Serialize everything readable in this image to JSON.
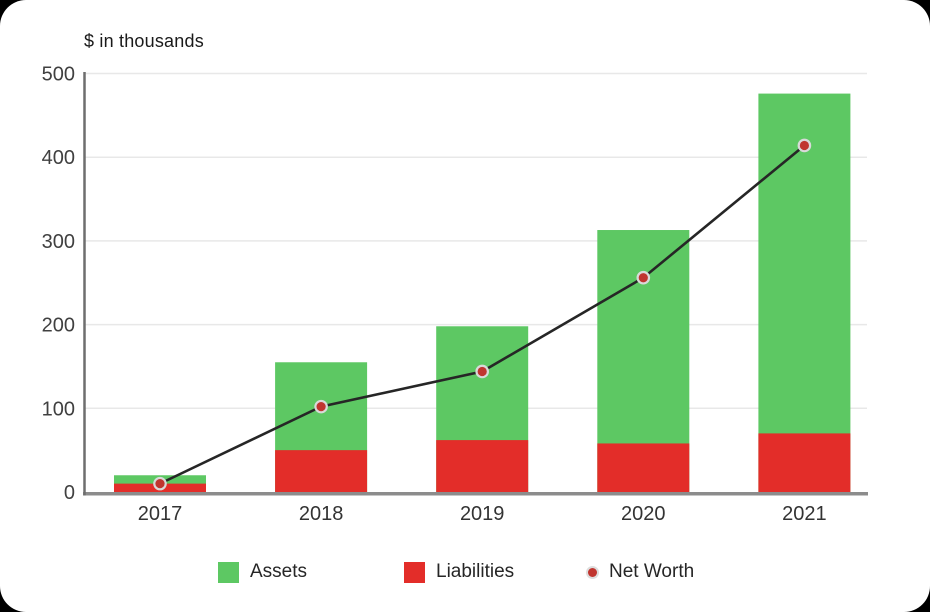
{
  "title": "$ in thousands",
  "chart_data": {
    "type": "bar",
    "subtype": "overlay-bars-with-line-markers",
    "title": "$ in thousands",
    "xlabel": "",
    "ylabel": "$ in thousands",
    "categories": [
      "2017",
      "2018",
      "2019",
      "2020",
      "2021"
    ],
    "series": [
      {
        "name": "Assets",
        "type": "bar",
        "color": "#5DC863",
        "values": [
          20,
          155,
          198,
          313,
          476
        ]
      },
      {
        "name": "Liabilities",
        "type": "bar",
        "color": "#E32D29",
        "values": [
          10,
          50,
          62,
          58,
          70
        ]
      },
      {
        "name": "Net Worth",
        "type": "line",
        "color": "#262626",
        "marker_fill": "#C0352F",
        "marker_ring": "#D9D9D9",
        "values": [
          10,
          102,
          144,
          256,
          414
        ]
      }
    ],
    "ylim": [
      0,
      500
    ],
    "yticks": [
      0,
      100,
      200,
      300,
      400,
      500
    ],
    "grid": true,
    "gridline_color": "#E8E8E8",
    "axis_color": "#8C8C8C",
    "tick_label_color": "#404040",
    "category_label_color": "#333333",
    "legend_position": "bottom"
  },
  "legend": {
    "items": [
      {
        "label": "Assets",
        "marker": "square",
        "color": "#5DC863"
      },
      {
        "label": "Liabilities",
        "marker": "square",
        "color": "#E32D29"
      },
      {
        "label": "Net Worth",
        "marker": "dot",
        "color": "#C0352F"
      }
    ]
  }
}
